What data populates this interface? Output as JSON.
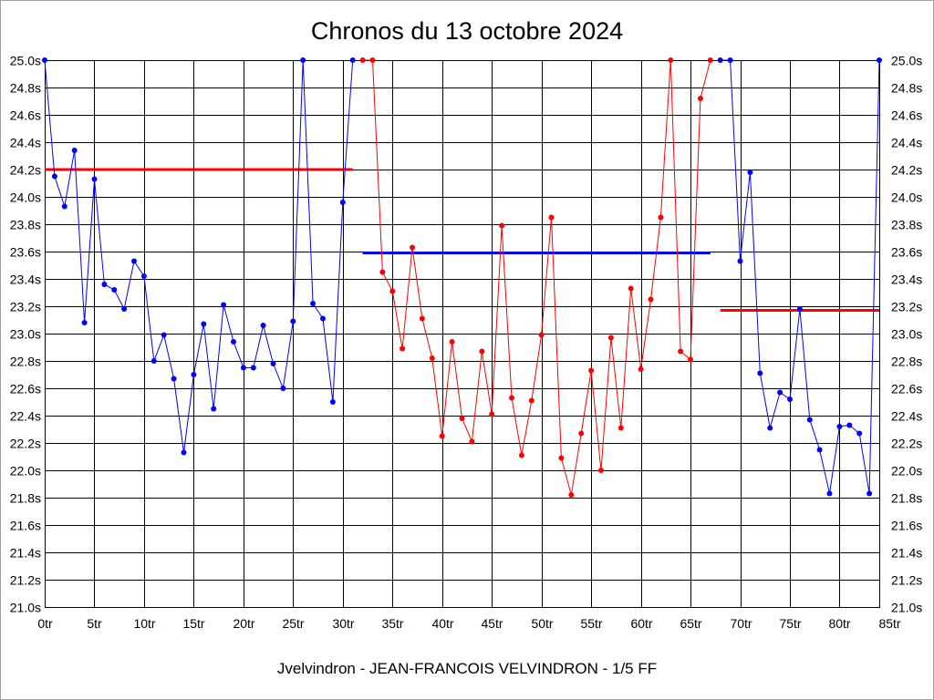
{
  "footer": "Jvelvindron - JEAN-FRANCOIS VELVINDRON - 1/5 FF",
  "chart_data": {
    "type": "line",
    "title": "Chronos du 13 octobre 2024",
    "xlim": [
      0,
      84
    ],
    "ylim": [
      21.0,
      25.0
    ],
    "grid": true,
    "y_labels_both_sides": true,
    "x_tick_step": 5,
    "x_tick_labels": [
      "0tr",
      "5tr",
      "10tr",
      "15tr",
      "20tr",
      "25tr",
      "30tr",
      "35tr",
      "40tr",
      "45tr",
      "50tr",
      "55tr",
      "60tr",
      "65tr",
      "70tr",
      "75tr",
      "80tr",
      "85tr"
    ],
    "y_tick_step": 0.2,
    "y_tick_labels": [
      "21.0s",
      "21.2s",
      "21.4s",
      "21.6s",
      "21.8s",
      "22.0s",
      "22.2s",
      "22.4s",
      "22.6s",
      "22.8s",
      "23.0s",
      "23.2s",
      "23.4s",
      "23.6s",
      "23.8s",
      "24.0s",
      "24.2s",
      "24.4s",
      "24.6s",
      "24.8s",
      "25.0s"
    ],
    "series": [
      {
        "color": "#0000ff",
        "x": [
          0,
          1,
          2,
          3,
          4,
          5,
          6,
          7,
          8,
          9,
          10,
          11,
          12,
          13,
          14,
          15,
          16,
          17,
          18,
          19,
          20,
          21,
          22,
          23,
          24,
          25,
          26,
          27,
          28,
          29,
          30,
          31
        ],
        "y": [
          25.0,
          24.15,
          23.93,
          24.34,
          23.08,
          24.13,
          23.36,
          23.32,
          23.18,
          23.53,
          23.42,
          22.8,
          22.99,
          22.67,
          22.13,
          22.7,
          23.07,
          22.45,
          23.21,
          22.94,
          22.75,
          22.75,
          23.06,
          22.78,
          22.6,
          23.09,
          25.0,
          23.22,
          23.11,
          22.5,
          23.96,
          25.0
        ]
      },
      {
        "color": "#ff0000",
        "x": [
          32,
          33,
          34,
          35,
          36,
          37,
          38,
          39,
          40,
          41,
          42,
          43,
          44,
          45,
          46,
          47,
          48,
          49,
          50,
          51,
          52,
          53,
          54,
          55,
          56,
          57,
          58,
          59,
          60,
          61,
          62,
          63,
          64,
          65,
          66,
          67
        ],
        "y": [
          25.0,
          25.0,
          23.45,
          23.31,
          22.89,
          23.63,
          23.11,
          22.82,
          22.25,
          22.94,
          22.38,
          22.21,
          22.87,
          22.41,
          23.79,
          22.53,
          22.11,
          22.51,
          22.99,
          23.85,
          22.09,
          21.82,
          22.27,
          22.73,
          22.0,
          22.97,
          22.31,
          23.33,
          22.74,
          23.25,
          23.85,
          25.0,
          22.87,
          22.81,
          24.72,
          25.0
        ]
      },
      {
        "color": "#0000ff",
        "x": [
          68,
          69,
          70,
          71,
          72,
          73,
          74,
          75,
          76,
          77,
          78,
          79,
          80,
          81,
          82,
          83,
          84
        ],
        "y": [
          25.0,
          25.0,
          23.53,
          24.18,
          22.71,
          22.31,
          22.57,
          22.52,
          23.18,
          22.37,
          22.15,
          21.83,
          22.32,
          22.33,
          22.27,
          21.83,
          25.0
        ]
      }
    ],
    "level_lines": [
      {
        "color": "#ff0000",
        "y": 24.2,
        "x": [
          0,
          31
        ]
      },
      {
        "color": "#0000ff",
        "y": 23.59,
        "x": [
          32,
          67
        ]
      },
      {
        "color": "#ff0000",
        "y": 23.17,
        "x": [
          68,
          84
        ]
      }
    ]
  }
}
